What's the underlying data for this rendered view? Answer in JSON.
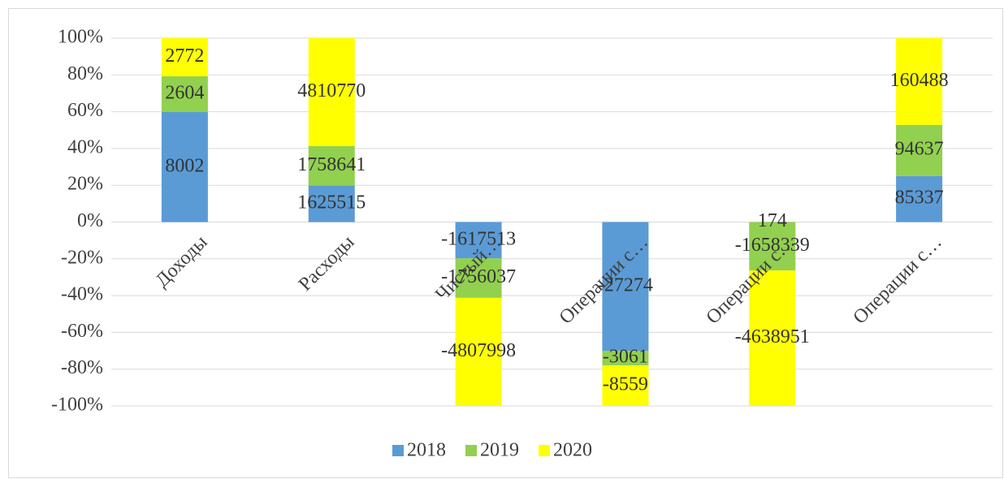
{
  "chart_data": {
    "type": "bar",
    "stacked": "percent",
    "categories": [
      "Доходы",
      "Расходы",
      "Чистый…",
      "Операции с…",
      "Операции с…",
      "Операции с…"
    ],
    "series": [
      {
        "name": "2018",
        "color": "#5b9bd5",
        "values": [
          8002,
          1625515,
          -1617513,
          -27274,
          174,
          85337
        ]
      },
      {
        "name": "2019",
        "color": "#92d050",
        "values": [
          2604,
          1758641,
          -1756037,
          -3061,
          -1658339,
          94637
        ]
      },
      {
        "name": "2020",
        "color": "#ffff00",
        "values": [
          2772,
          4810770,
          -4807998,
          -8559,
          -4638951,
          160488
        ]
      }
    ],
    "ylim": [
      -100,
      100
    ],
    "yticks": [
      {
        "value": -100,
        "label": "-100%"
      },
      {
        "value": -80,
        "label": "-80%"
      },
      {
        "value": -60,
        "label": "-60%"
      },
      {
        "value": -40,
        "label": "-40%"
      },
      {
        "value": -20,
        "label": "-20%"
      },
      {
        "value": 0,
        "label": "0%"
      },
      {
        "value": 20,
        "label": "20%"
      },
      {
        "value": 40,
        "label": "40%"
      },
      {
        "value": 60,
        "label": "60%"
      },
      {
        "value": 80,
        "label": "80%"
      },
      {
        "value": 100,
        "label": "100%"
      }
    ],
    "grid": true,
    "legend": "bottom"
  }
}
